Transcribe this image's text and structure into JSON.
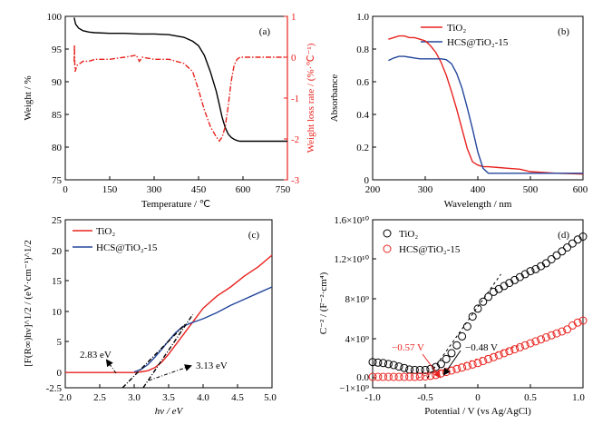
{
  "chart_data": [
    {
      "id": "a",
      "type": "line",
      "panel_label": "(a)",
      "xlabel": "Temperature / ℃",
      "ylabel": "Weight / %",
      "y2label": "Weight loss rate / (%·℃⁻¹)",
      "xlim": [
        0,
        750
      ],
      "ylim": [
        75,
        100
      ],
      "y2lim": [
        -3,
        1
      ],
      "xticks": [
        "0",
        "150",
        "300",
        "450",
        "600",
        "750"
      ],
      "yticks": [
        "75",
        "80",
        "85",
        "90",
        "95",
        "100"
      ],
      "y2ticks": [
        "-3",
        "-2",
        "-1",
        "0",
        "1"
      ],
      "grid": false,
      "series": [
        {
          "axis": "left",
          "style": "solid",
          "color": "#000000",
          "x": [
            30,
            35,
            45,
            60,
            80,
            100,
            150,
            200,
            250,
            300,
            350,
            400,
            430,
            450,
            470,
            490,
            510,
            520,
            530,
            540,
            550,
            560,
            570,
            580,
            590,
            600,
            650,
            700,
            750
          ],
          "y": [
            99.8,
            98.8,
            98.2,
            97.8,
            97.6,
            97.5,
            97.4,
            97.4,
            97.3,
            97.3,
            97.2,
            96.8,
            96.2,
            95.5,
            94.0,
            91.5,
            88.5,
            86.5,
            84.5,
            83.0,
            82.0,
            81.5,
            81.2,
            81.0,
            80.9,
            80.9,
            80.9,
            80.9,
            80.9
          ]
        },
        {
          "axis": "right",
          "style": "dashdot",
          "color": "#e8231f",
          "x": [
            30,
            31,
            32,
            33,
            40,
            60,
            80,
            100,
            150,
            200,
            240,
            250,
            260,
            300,
            350,
            400,
            430,
            450,
            470,
            490,
            510,
            520,
            530,
            540,
            550,
            560,
            570,
            580,
            590,
            600,
            650,
            700,
            750
          ],
          "y": [
            -0.1,
            0.3,
            -0.2,
            -0.35,
            -0.2,
            -0.1,
            -0.1,
            -0.05,
            -0.05,
            0.0,
            0.05,
            -0.1,
            0.0,
            -0.05,
            -0.05,
            -0.15,
            -0.35,
            -0.8,
            -1.3,
            -1.7,
            -1.95,
            -2.05,
            -1.95,
            -1.7,
            -1.2,
            -0.6,
            -0.2,
            -0.05,
            0.0,
            0.0,
            0.0,
            0.0,
            0.0
          ]
        }
      ]
    },
    {
      "id": "b",
      "type": "line",
      "panel_label": "(b)",
      "xlabel": "Wavelength / nm",
      "ylabel": "Absorbance",
      "xlim": [
        200,
        600
      ],
      "ylim": [
        0,
        1.0
      ],
      "xticks": [
        "200",
        "300",
        "400",
        "500",
        "600"
      ],
      "yticks": [
        "0",
        "0.2",
        "0.4",
        "0.6",
        "0.8",
        "1.0"
      ],
      "legend_position": "top-right",
      "grid": false,
      "series": [
        {
          "name": "TiO₂",
          "color": "#e8231f",
          "x": [
            230,
            240,
            250,
            260,
            270,
            280,
            290,
            300,
            310,
            320,
            330,
            340,
            350,
            360,
            370,
            380,
            390,
            400,
            410,
            420,
            440,
            460,
            480,
            500,
            550,
            600
          ],
          "y": [
            0.86,
            0.87,
            0.88,
            0.88,
            0.87,
            0.87,
            0.86,
            0.85,
            0.82,
            0.78,
            0.72,
            0.64,
            0.54,
            0.43,
            0.31,
            0.19,
            0.11,
            0.09,
            0.08,
            0.08,
            0.075,
            0.07,
            0.065,
            0.05,
            0.04,
            0.035
          ]
        },
        {
          "name": "HCS@TiO₂-15",
          "color": "#23469b",
          "x": [
            230,
            240,
            250,
            260,
            270,
            280,
            290,
            300,
            310,
            320,
            330,
            340,
            350,
            360,
            370,
            380,
            390,
            400,
            410,
            420,
            440,
            460,
            480,
            500,
            550,
            600
          ],
          "y": [
            0.73,
            0.745,
            0.755,
            0.755,
            0.75,
            0.745,
            0.74,
            0.74,
            0.74,
            0.74,
            0.74,
            0.735,
            0.71,
            0.65,
            0.56,
            0.44,
            0.31,
            0.17,
            0.07,
            0.04,
            0.04,
            0.04,
            0.04,
            0.04,
            0.04,
            0.04
          ]
        }
      ]
    },
    {
      "id": "c",
      "type": "line",
      "panel_label": "(c)",
      "xlabel": "hν / eV",
      "ylabel": "[F(R∞)hν]^1/2 / (eV·cm⁻¹)^1/2",
      "xlim": [
        2.0,
        5.0
      ],
      "ylim": [
        -2.5,
        25
      ],
      "xticks": [
        "2.0",
        "2.5",
        "3.0",
        "3.5",
        "4.0",
        "4.5",
        "5.0"
      ],
      "yticks": [
        "-2.5",
        "0",
        "5",
        "10",
        "15",
        "20",
        "25"
      ],
      "legend_position": "top-left",
      "grid": false,
      "annotations": [
        {
          "text": "2.83 eV",
          "x": 2.83,
          "y": -2.5
        },
        {
          "text": "3.13 eV",
          "x": 3.13,
          "y": -2.5
        }
      ],
      "series": [
        {
          "name": "TiO₂",
          "color": "#e8231f",
          "x": [
            2.0,
            2.5,
            3.0,
            3.1,
            3.2,
            3.3,
            3.4,
            3.5,
            3.6,
            3.7,
            3.8,
            3.9,
            4.0,
            4.2,
            4.4,
            4.6,
            4.8,
            5.0
          ],
          "y": [
            0,
            0,
            0,
            0.1,
            0.3,
            0.8,
            1.7,
            3.0,
            4.5,
            6.0,
            7.5,
            9.0,
            10.5,
            12.5,
            14.0,
            15.8,
            17.3,
            19.2
          ]
        },
        {
          "name": "HCS@TiO₂-15",
          "color": "#23469b",
          "x": [
            3.0,
            3.1,
            3.2,
            3.3,
            3.4,
            3.5,
            3.6,
            3.7,
            3.8,
            4.0,
            4.2,
            4.4,
            4.6,
            4.8,
            5.0
          ],
          "y": [
            0.1,
            0.5,
            1.3,
            2.5,
            3.8,
            5.2,
            6.5,
            7.5,
            8.0,
            8.8,
            9.8,
            11.0,
            12.0,
            13.0,
            14.0
          ]
        },
        {
          "name": "",
          "style": "dashed",
          "color": "#000000",
          "x": [
            2.83,
            3.75
          ],
          "y": [
            -2.5,
            8.0
          ]
        },
        {
          "name": "",
          "style": "dashed",
          "color": "#000000",
          "x": [
            3.13,
            3.85
          ],
          "y": [
            -2.5,
            9.5
          ]
        }
      ]
    },
    {
      "id": "d",
      "type": "scatter",
      "panel_label": "(d)",
      "xlabel": "Potential / V (vs Ag/AgCl)",
      "ylabel": "C⁻² / (F⁻²·cm⁴)",
      "xlim": [
        -1.0,
        1.0
      ],
      "ylim": [
        -1000000000.0,
        16000000000.0
      ],
      "xticks": [
        "-1.0",
        "-0.5",
        "0",
        "0.5",
        "1.0"
      ],
      "yticks": [
        "−1×10⁹",
        "0.0",
        "4×10⁹",
        "8×10⁹",
        "1.2×10¹⁰",
        "1.6×10¹⁰"
      ],
      "legend_position": "top-left",
      "grid": false,
      "annotations": [
        {
          "text": "−0.57 V",
          "x": -0.57,
          "color": "#e8231f"
        },
        {
          "text": "−0.48 V",
          "x": -0.48,
          "color": "#000000"
        }
      ],
      "series": [
        {
          "name": "TiO₂",
          "color": "#000000",
          "marker": "open-circle",
          "x": [
            -1.0,
            -0.95,
            -0.9,
            -0.85,
            -0.8,
            -0.75,
            -0.7,
            -0.65,
            -0.6,
            -0.55,
            -0.5,
            -0.45,
            -0.4,
            -0.35,
            -0.3,
            -0.25,
            -0.2,
            -0.15,
            -0.1,
            -0.05,
            0.0,
            0.05,
            0.1,
            0.15,
            0.2,
            0.25,
            0.3,
            0.35,
            0.4,
            0.45,
            0.5,
            0.55,
            0.6,
            0.65,
            0.7,
            0.75,
            0.8,
            0.85,
            0.9,
            0.95,
            1.0
          ],
          "y": [
            1600000000.0,
            1550000000.0,
            1500000000.0,
            1400000000.0,
            1300000000.0,
            1150000000.0,
            1000000000.0,
            850000000.0,
            800000000.0,
            800000000.0,
            800000000.0,
            900000000.0,
            1100000000.0,
            1400000000.0,
            1900000000.0,
            2500000000.0,
            3300000000.0,
            4200000000.0,
            5200000000.0,
            6200000000.0,
            7000000000.0,
            7700000000.0,
            8200000000.0,
            8700000000.0,
            9000000000.0,
            9300000000.0,
            9600000000.0,
            9900000000.0,
            10200000000.0,
            10500000000.0,
            10800000000.0,
            11000000000.0,
            11300000000.0,
            11600000000.0,
            12000000000.0,
            12400000000.0,
            12800000000.0,
            13200000000.0,
            13600000000.0,
            14000000000.0,
            14300000000.0
          ]
        },
        {
          "name": "HCS@TiO₂-15",
          "color": "#e8231f",
          "marker": "open-circle",
          "x": [
            -1.0,
            -0.95,
            -0.9,
            -0.85,
            -0.8,
            -0.75,
            -0.7,
            -0.65,
            -0.6,
            -0.55,
            -0.5,
            -0.45,
            -0.4,
            -0.35,
            -0.3,
            -0.25,
            -0.2,
            -0.15,
            -0.1,
            -0.05,
            0.0,
            0.05,
            0.1,
            0.15,
            0.2,
            0.25,
            0.3,
            0.35,
            0.4,
            0.45,
            0.5,
            0.55,
            0.6,
            0.65,
            0.7,
            0.75,
            0.8,
            0.85,
            0.9,
            0.95,
            1.0
          ],
          "y": [
            100000000.0,
            100000000.0,
            100000000.0,
            100000000.0,
            100000000.0,
            100000000.0,
            100000000.0,
            100000000.0,
            100000000.0,
            120000000.0,
            150000000.0,
            200000000.0,
            300000000.0,
            450000000.0,
            600000000.0,
            750000000.0,
            900000000.0,
            1050000000.0,
            1200000000.0,
            1350000000.0,
            1500000000.0,
            1700000000.0,
            1900000000.0,
            2100000000.0,
            2300000000.0,
            2500000000.0,
            2700000000.0,
            2900000000.0,
            3100000000.0,
            3300000000.0,
            3500000000.0,
            3700000000.0,
            3900000000.0,
            4100000000.0,
            4300000000.0,
            4500000000.0,
            4700000000.0,
            4900000000.0,
            5300000000.0,
            5600000000.0,
            5800000000.0
          ]
        }
      ]
    }
  ]
}
